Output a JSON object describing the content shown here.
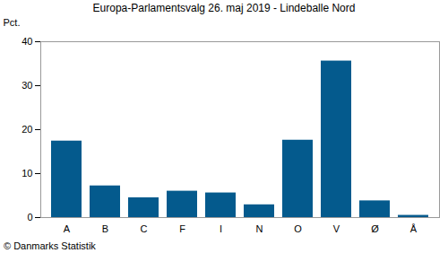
{
  "chart_data": {
    "type": "bar",
    "title": "Europa-Parlamentsvalg 26. maj 2019 - Lindeballe Nord",
    "y_label": "Pct.",
    "caption": "© Danmarks Statistik",
    "categories": [
      "A",
      "B",
      "C",
      "F",
      "I",
      "N",
      "O",
      "V",
      "Ø",
      "Å"
    ],
    "values": [
      17.4,
      7.2,
      4.5,
      6.0,
      5.6,
      2.9,
      17.6,
      35.6,
      3.8,
      0.5
    ],
    "color": "#045a8d",
    "ylim": [
      0,
      40
    ],
    "yticks": [
      0,
      10,
      20,
      30,
      40
    ],
    "grid": false
  }
}
